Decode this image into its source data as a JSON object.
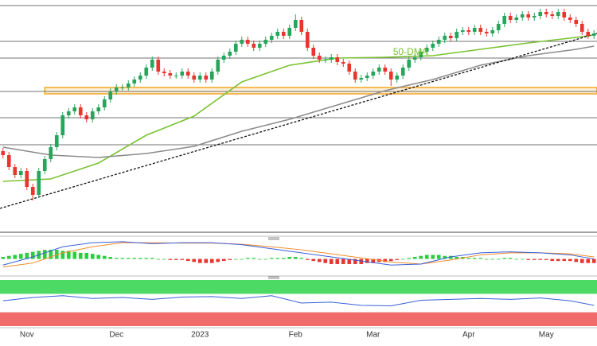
{
  "chart_data": {
    "type": "candlestick",
    "categories": [
      null,
      null,
      null,
      null,
      "Nov",
      null,
      null,
      null,
      null,
      null,
      null,
      null,
      null,
      null,
      null,
      null,
      null,
      null,
      null,
      "Dec",
      null,
      null,
      null,
      null,
      null,
      null,
      null,
      null,
      null,
      null,
      null,
      null,
      null,
      "2023",
      null,
      null,
      null,
      null,
      null,
      null,
      null,
      null,
      null,
      null,
      null,
      null,
      null,
      null,
      null,
      "Feb",
      null,
      null,
      null,
      null,
      null,
      null,
      null,
      null,
      null,
      null,
      null,
      null,
      "Mar",
      null,
      null,
      null,
      null,
      null,
      null,
      null,
      null,
      null,
      null,
      null,
      null,
      null,
      null,
      null,
      "Apr",
      null,
      null,
      null,
      null,
      null,
      null,
      null,
      null,
      null,
      null,
      null,
      null,
      "May",
      null,
      null,
      null,
      null,
      null,
      null,
      null,
      null
    ],
    "xlim": [
      -0.5,
      99.5
    ],
    "ylim": [
      0.969,
      1.115
    ],
    "open": [
      1.02,
      1.0175,
      1.01,
      1.005,
      1.0075,
      0.9975,
      0.9925,
      1.0075,
      1.015,
      1.0225,
      1.03,
      1.0425,
      1.045,
      1.0475,
      1.0425,
      1.04,
      1.045,
      1.0475,
      1.0525,
      1.0575,
      1.06,
      1.06,
      1.0625,
      1.065,
      1.0675,
      1.0725,
      1.0775,
      1.07,
      1.069,
      1.0675,
      1.0675,
      1.07,
      1.0675,
      1.065,
      1.0675,
      1.065,
      1.07,
      1.0775,
      1.08,
      1.0825,
      1.0875,
      1.09,
      1.0875,
      1.085,
      1.0875,
      1.09,
      1.0925,
      1.095,
      1.0925,
      1.0975,
      1.1025,
      1.095,
      1.085,
      1.08,
      1.0775,
      1.0775,
      1.079,
      1.076,
      1.075,
      1.07,
      1.065,
      1.066,
      1.0675,
      1.07,
      1.0725,
      1.07,
      1.065,
      1.0675,
      1.0725,
      1.0775,
      1.079,
      1.0825,
      1.085,
      1.0875,
      1.09,
      1.0925,
      1.091,
      1.095,
      1.096,
      1.095,
      1.0975,
      1.095,
      1.094,
      1.096,
      1.1,
      1.105,
      1.1025,
      1.104,
      1.106,
      1.104,
      1.105,
      1.1075,
      1.106,
      1.105,
      1.1075,
      1.104,
      1.1025,
      1.1,
      1.095,
      1.0925
    ],
    "high": [
      1.022,
      1.0195,
      1.012,
      1.0095,
      1.0095,
      0.9995,
      1.0095,
      1.017,
      1.0245,
      1.032,
      1.0445,
      1.047,
      1.0495,
      1.0495,
      1.0445,
      1.047,
      1.0495,
      1.0545,
      1.0595,
      1.062,
      1.062,
      1.0645,
      1.067,
      1.0695,
      1.0745,
      1.0795,
      1.0795,
      1.072,
      1.071,
      1.0695,
      1.072,
      1.072,
      1.0695,
      1.0695,
      1.0695,
      1.072,
      1.0795,
      1.082,
      1.0845,
      1.0895,
      1.092,
      1.092,
      1.0895,
      1.0895,
      1.092,
      1.0945,
      1.097,
      1.097,
      1.0995,
      1.106,
      1.1045,
      1.097,
      1.087,
      1.082,
      1.0795,
      1.081,
      1.081,
      1.078,
      1.077,
      1.072,
      1.068,
      1.0695,
      1.072,
      1.0745,
      1.0745,
      1.072,
      1.0695,
      1.0745,
      1.0795,
      1.081,
      1.0845,
      1.087,
      1.0895,
      1.092,
      1.0945,
      1.0945,
      1.097,
      1.098,
      1.098,
      1.0995,
      1.0995,
      1.097,
      1.098,
      1.102,
      1.107,
      1.107,
      1.106,
      1.108,
      1.108,
      1.107,
      1.1095,
      1.1095,
      1.108,
      1.1095,
      1.1095,
      1.106,
      1.1045,
      1.102,
      1.097,
      1.096
    ],
    "low": [
      1.0155,
      1.008,
      1.003,
      1.003,
      0.9955,
      0.989,
      0.9905,
      1.0055,
      1.013,
      1.0205,
      1.028,
      1.0405,
      1.043,
      1.0405,
      1.038,
      1.038,
      1.043,
      1.0455,
      1.0505,
      1.0555,
      1.058,
      1.058,
      1.0605,
      1.063,
      1.0655,
      1.0705,
      1.068,
      1.067,
      1.0655,
      1.0655,
      1.0655,
      1.0655,
      1.063,
      1.063,
      1.063,
      1.063,
      1.068,
      1.0755,
      1.078,
      1.0805,
      1.0855,
      1.0855,
      1.083,
      1.083,
      1.0855,
      1.088,
      1.0905,
      1.0905,
      1.0905,
      1.0955,
      1.093,
      1.083,
      1.078,
      1.0755,
      1.0755,
      1.0755,
      1.074,
      1.073,
      1.068,
      1.063,
      1.063,
      1.064,
      1.0655,
      1.068,
      1.068,
      1.061,
      1.063,
      1.0655,
      1.0705,
      1.0755,
      1.077,
      1.0805,
      1.083,
      1.0855,
      1.088,
      1.089,
      1.089,
      1.093,
      1.093,
      1.093,
      1.093,
      1.092,
      1.092,
      1.094,
      1.098,
      1.1005,
      1.1005,
      1.102,
      1.102,
      1.102,
      1.103,
      1.104,
      1.103,
      1.103,
      1.102,
      1.1005,
      1.098,
      1.093,
      1.0905,
      1.0905
    ],
    "close": [
      1.0175,
      1.01,
      1.005,
      1.0075,
      0.9975,
      0.9925,
      1.0075,
      1.015,
      1.0225,
      1.03,
      1.0425,
      1.045,
      1.0475,
      1.0425,
      1.04,
      1.045,
      1.0475,
      1.0525,
      1.0575,
      1.06,
      1.06,
      1.0625,
      1.065,
      1.0675,
      1.0725,
      1.0775,
      1.07,
      1.069,
      1.0675,
      1.0675,
      1.07,
      1.0675,
      1.065,
      1.0675,
      1.065,
      1.07,
      1.0775,
      1.08,
      1.0825,
      1.0875,
      1.09,
      1.0875,
      1.085,
      1.0875,
      1.09,
      1.0925,
      1.095,
      1.0925,
      1.0975,
      1.1025,
      1.095,
      1.085,
      1.08,
      1.0775,
      1.0775,
      1.079,
      1.076,
      1.075,
      1.07,
      1.065,
      1.066,
      1.0675,
      1.07,
      1.0725,
      1.07,
      1.065,
      1.0675,
      1.0725,
      1.0775,
      1.079,
      1.0825,
      1.085,
      1.0875,
      1.09,
      1.0925,
      1.091,
      1.095,
      1.096,
      1.095,
      1.0975,
      1.095,
      1.094,
      1.096,
      1.1,
      1.105,
      1.1025,
      1.104,
      1.106,
      1.104,
      1.105,
      1.1075,
      1.106,
      1.105,
      1.1075,
      1.104,
      1.1025,
      1.1,
      1.095,
      1.0925,
      1.094
    ],
    "up_color": "#26a65b",
    "down_color": "#e8352e",
    "levels": [
      1.1115,
      1.089,
      1.0785,
      1.0575,
      1.041,
      1.024
    ],
    "level_color": "#444444",
    "zone": [
      1.056,
      1.06
    ],
    "zone_x": [
      7,
      99.5
    ],
    "zone_color": "#f5a623",
    "moving_averages": [
      {
        "name": "50-DMA",
        "color": "#7ac231",
        "x": [
          0,
          8,
          16,
          24,
          32,
          40,
          48,
          56,
          64,
          72,
          80,
          88,
          96,
          99
        ],
        "values": [
          1.001,
          1.0025,
          1.0125,
          1.03,
          1.042,
          1.0635,
          1.074,
          1.0785,
          1.079,
          1.08,
          1.084,
          1.088,
          1.0915,
          1.093
        ]
      },
      {
        "color": "#8c8c8c",
        "x": [
          0,
          8,
          16,
          24,
          32,
          40,
          48,
          56,
          64,
          72,
          80,
          88,
          96,
          99
        ],
        "values": [
          1.0225,
          1.0175,
          1.016,
          1.0185,
          1.023,
          1.0325,
          1.04,
          1.049,
          1.058,
          1.065,
          1.074,
          1.08,
          1.084,
          1.086
        ]
      }
    ],
    "trendline": {
      "color": "#111111",
      "x": [
        -0.5,
        99.5
      ],
      "values": [
        0.984,
        1.094
      ]
    },
    "macd": {
      "ylim": [
        -0.8,
        1.0
      ],
      "histogram": [
        0.1,
        0.15,
        0.2,
        0.25,
        0.3,
        0.35,
        0.4,
        0.45,
        0.45,
        0.45,
        0.4,
        0.4,
        0.35,
        0.3,
        0.3,
        0.25,
        0.2,
        0.15,
        0.1,
        0.05,
        0.05,
        0.05,
        0.05,
        0.05,
        0.05,
        0.05,
        0,
        0,
        -0.05,
        -0.05,
        -0.05,
        -0.1,
        -0.15,
        -0.2,
        -0.2,
        -0.2,
        -0.15,
        -0.1,
        -0.05,
        0,
        0,
        0.05,
        0.05,
        0,
        0,
        0.05,
        0.05,
        0.05,
        0.1,
        0.1,
        0.05,
        -0.05,
        -0.1,
        -0.15,
        -0.2,
        -0.25,
        -0.25,
        -0.25,
        -0.25,
        -0.25,
        -0.25,
        -0.2,
        -0.2,
        -0.15,
        -0.15,
        -0.1,
        -0.05,
        0,
        0.05,
        0.1,
        0.15,
        0.2,
        0.2,
        0.2,
        0.15,
        0.15,
        0.1,
        0.1,
        0.05,
        0.05,
        0.05,
        0,
        0,
        0,
        0.05,
        0.05,
        0,
        0,
        -0.05,
        -0.05,
        -0.05,
        -0.05,
        -0.1,
        -0.1,
        -0.1,
        -0.1,
        -0.15,
        -0.2,
        -0.2,
        -0.2
      ],
      "up_color": "#2ecc40",
      "down_color": "#e8352e",
      "line": {
        "color": "#3a5fd9",
        "x": [
          0,
          5,
          10,
          15,
          20,
          25,
          30,
          35,
          40,
          45,
          50,
          55,
          60,
          65,
          70,
          75,
          80,
          85,
          90,
          95,
          99
        ],
        "values": [
          -0.3,
          0.1,
          0.6,
          0.8,
          0.85,
          0.75,
          0.8,
          0.8,
          0.7,
          0.5,
          0.3,
          0.1,
          -0.1,
          -0.3,
          -0.25,
          0.1,
          0.3,
          0.35,
          0.3,
          0.2,
          0.0
        ]
      },
      "signal": {
        "color": "#f08c2a",
        "x": [
          0,
          5,
          10,
          15,
          20,
          25,
          30,
          35,
          40,
          45,
          50,
          55,
          60,
          65,
          70,
          75,
          80,
          85,
          90,
          95,
          99
        ],
        "values": [
          -0.4,
          -0.2,
          0.3,
          0.6,
          0.8,
          0.8,
          0.78,
          0.78,
          0.72,
          0.6,
          0.45,
          0.25,
          0.05,
          -0.15,
          -0.25,
          -0.05,
          0.2,
          0.3,
          0.3,
          0.25,
          0.1
        ]
      }
    },
    "rsi": {
      "ylim": [
        0,
        100
      ],
      "overbought": 70,
      "oversold": 30,
      "overbought_color": "#4cd964",
      "oversold_color": "#f26b6b",
      "color": "#3a5fd9",
      "x": [
        0,
        5,
        10,
        15,
        20,
        25,
        30,
        35,
        40,
        45,
        50,
        55,
        60,
        65,
        70,
        75,
        80,
        85,
        90,
        95,
        99
      ],
      "values": [
        55,
        62,
        66,
        60,
        62,
        58,
        63,
        64,
        60,
        66,
        50,
        52,
        45,
        44,
        56,
        58,
        60,
        58,
        61,
        55,
        45
      ]
    }
  }
}
